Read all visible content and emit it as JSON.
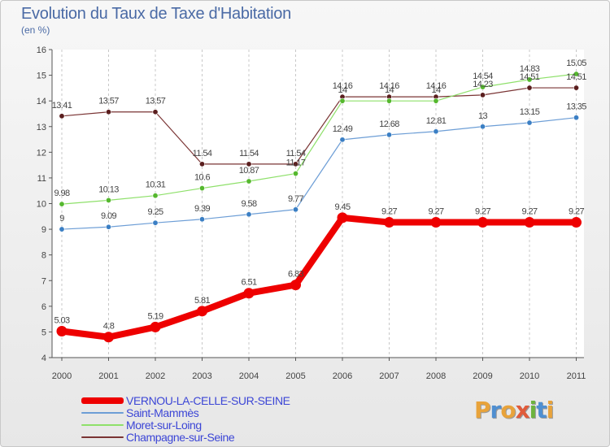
{
  "title": "Evolution du Taux de Taxe d'Habitation",
  "subtitle": "(en %)",
  "logo": {
    "text": "Proxiti",
    "letters": [
      {
        "ch": "P",
        "color": "#e8a33b"
      },
      {
        "ch": "r",
        "color": "#4f8fd1"
      },
      {
        "ch": "o",
        "color": "#e8a33b"
      },
      {
        "ch": "x",
        "color": "#e05b3b"
      },
      {
        "ch": "i",
        "color": "#6db33f"
      },
      {
        "ch": "t",
        "color": "#4f8fd1"
      },
      {
        "ch": "i",
        "color": "#e8a33b"
      }
    ]
  },
  "chart_data": {
    "type": "line",
    "title": "Evolution du Taux de Taxe d'Habitation",
    "ylabel": "(en %)",
    "xlabel": "",
    "ylim": [
      4,
      16
    ],
    "yticks": [
      4,
      5,
      6,
      7,
      8,
      9,
      10,
      11,
      12,
      13,
      14,
      15,
      16
    ],
    "grid": "dashed vertical",
    "x": [
      "2000",
      "2001",
      "2002",
      "2003",
      "2004",
      "2005",
      "2006",
      "2007",
      "2008",
      "2009",
      "2010",
      "2011"
    ],
    "series": [
      {
        "name": "VERNOU-LA-CELLE-SUR-SEINE",
        "color": "#ee0000",
        "marker_color": "#ee0000",
        "highlight": true,
        "values": [
          5.03,
          4.8,
          5.19,
          5.81,
          6.51,
          6.83,
          9.45,
          9.27,
          9.27,
          9.27,
          9.27,
          9.27
        ],
        "labels": [
          "5.03",
          "4.8",
          "5.19",
          "5.81",
          "6.51",
          "6.83",
          "9.45",
          "9.27",
          "9.27",
          "9.27",
          "9.27",
          "9.27"
        ]
      },
      {
        "name": "Saint-Mammès",
        "color": "#6d9ed6",
        "marker_color": "#3b7fc4",
        "values": [
          9,
          9.09,
          9.25,
          9.39,
          9.58,
          9.77,
          12.49,
          12.68,
          12.81,
          13,
          13.15,
          13.35
        ],
        "labels": [
          "9",
          "9.09",
          "9.25",
          "9.39",
          "9.58",
          "9.77",
          "12.49",
          "12.68",
          "12.81",
          "13",
          "13.15",
          "13.35"
        ]
      },
      {
        "name": "Moret-sur-Loing",
        "color": "#8ee06a",
        "marker_color": "#55b82e",
        "values": [
          9.98,
          10.13,
          10.31,
          10.6,
          10.87,
          11.17,
          14,
          14,
          14,
          14.54,
          14.83,
          15.05
        ],
        "labels": [
          "9.98",
          "10.13",
          "10.31",
          "10.6",
          "10.87",
          "11.17",
          "14",
          "14",
          "14",
          "14.54",
          "14.83",
          "15.05"
        ]
      },
      {
        "name": "Champagne-sur-Seine",
        "color": "#7a3434",
        "marker_color": "#5a1e1e",
        "values": [
          13.41,
          13.57,
          13.57,
          11.54,
          11.54,
          11.54,
          14.16,
          14.16,
          14.16,
          14.23,
          14.51,
          14.51
        ],
        "labels": [
          "13.41",
          "13.57",
          "13.57",
          "11.54",
          "11.54",
          "11.54",
          "14.16",
          "14.16",
          "14.16",
          "14.23",
          "14.51",
          "14.51"
        ]
      }
    ]
  }
}
